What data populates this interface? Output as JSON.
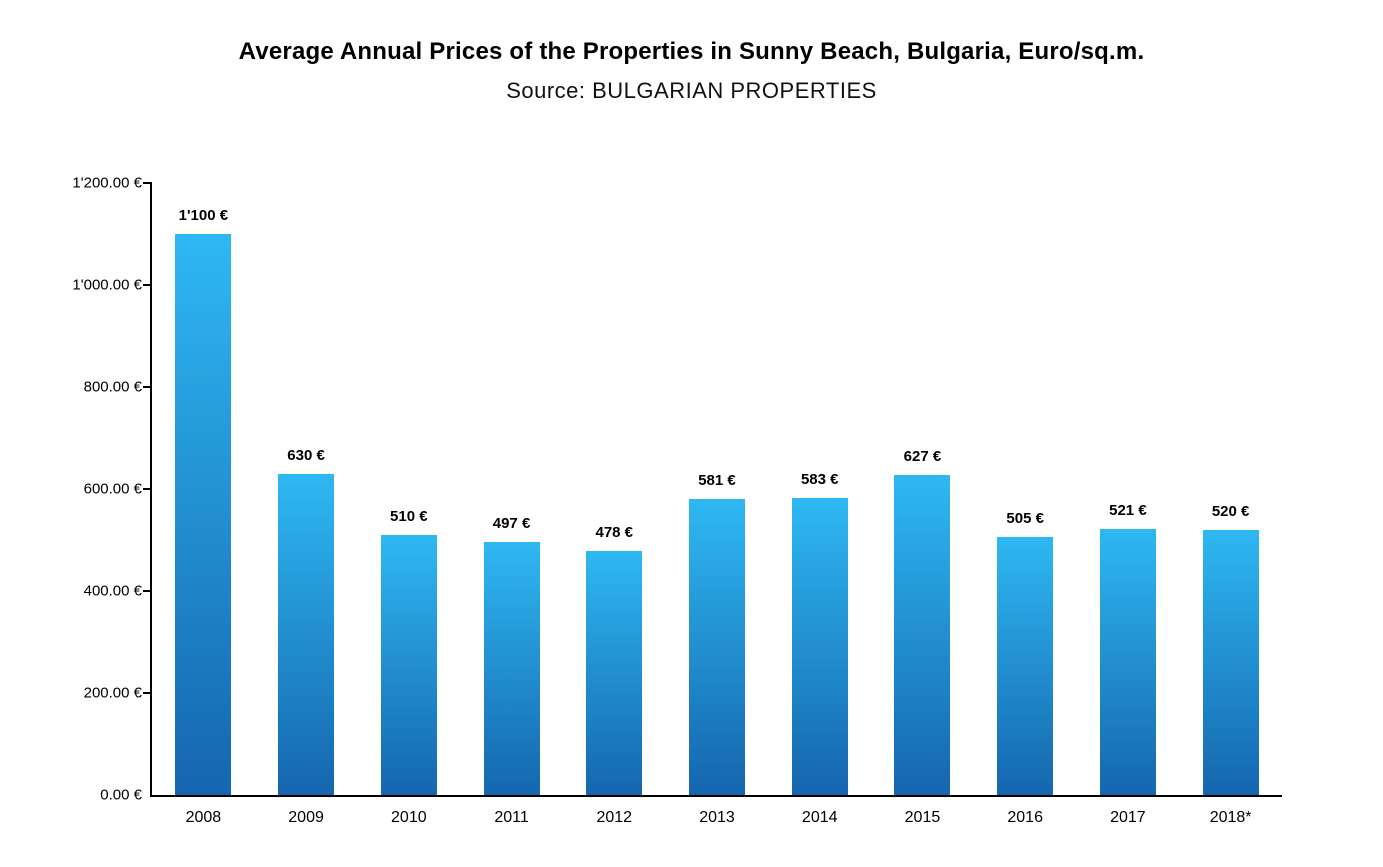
{
  "chart_data": {
    "type": "bar",
    "title": "Average Annual Prices of the Properties in Sunny Beach, Bulgaria, Euro/sq.m.",
    "subtitle": "Source: BULGARIAN PROPERTIES",
    "categories": [
      "2008",
      "2009",
      "2010",
      "2011",
      "2012",
      "2013",
      "2014",
      "2015",
      "2016",
      "2017",
      "2018*"
    ],
    "values": [
      1100,
      630,
      510,
      497,
      478,
      581,
      583,
      627,
      505,
      521,
      520
    ],
    "value_labels": [
      "1'100 €",
      "630 €",
      "510 €",
      "497 €",
      "478 €",
      "581 €",
      "583 €",
      "627 €",
      "505 €",
      "521 €",
      "520 €"
    ],
    "xlabel": "",
    "ylabel": "",
    "ylim": [
      0,
      1200
    ],
    "ytick_step": 200,
    "ytick_labels": [
      "0.00 €",
      "200.00 €",
      "400.00 €",
      "600.00 €",
      "800.00 €",
      "1'000.00 €",
      "1'200.00 €"
    ],
    "grid": false,
    "legend": false,
    "colors": {
      "bar_gradient_top": "#2eb8f2",
      "bar_gradient_bottom": "#1566ae",
      "axis": "#000000",
      "text": "#000000"
    }
  }
}
